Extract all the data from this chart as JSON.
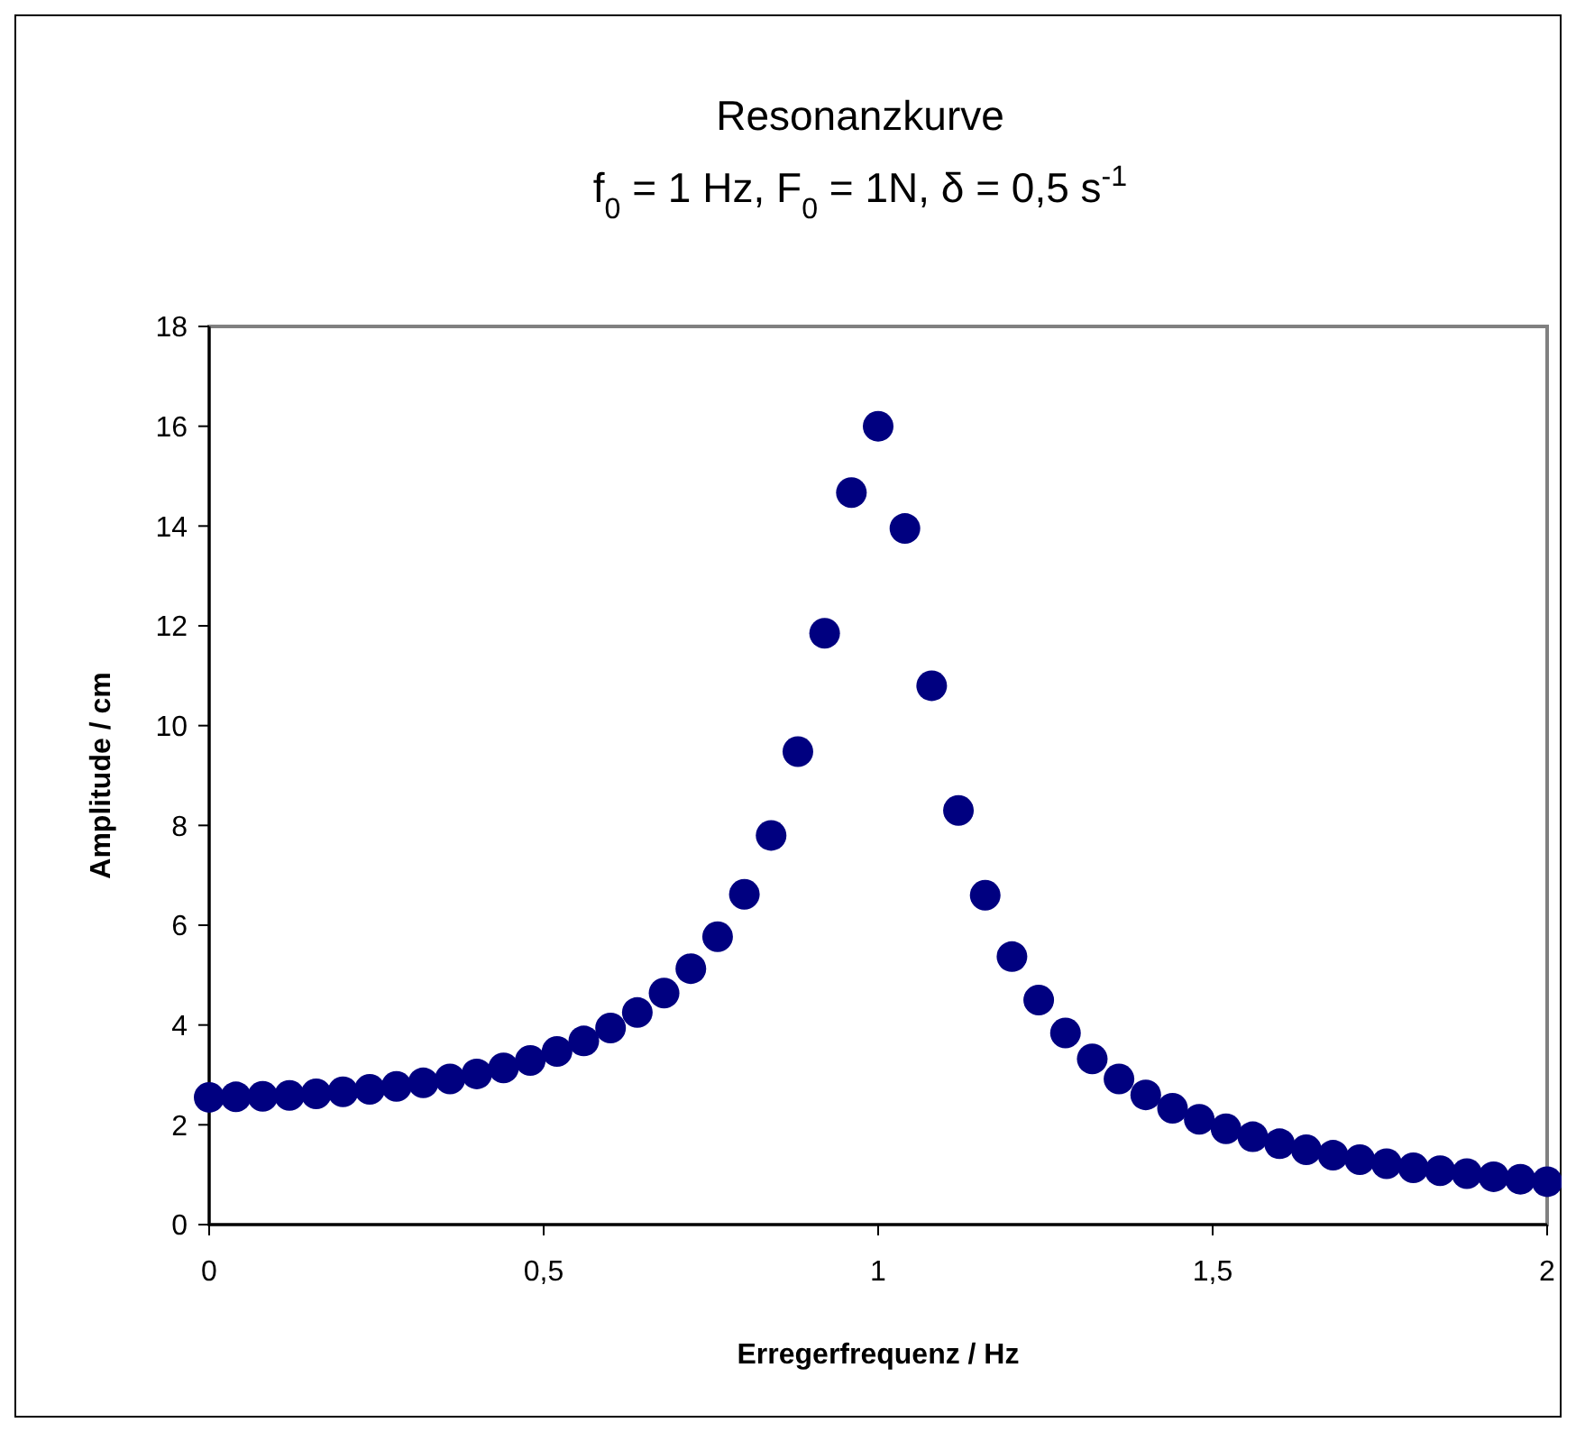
{
  "chart_data": {
    "type": "scatter",
    "title": "Resonanzkurve",
    "subtitle": "f$_{0}$ = 1 Hz, F$_{0}$ = 1N, δ = 0,5 s$^{-1}$",
    "xlabel": "Erregerfrequenz / Hz",
    "ylabel": "Amplitude / cm",
    "x": [
      0,
      0.04,
      0.08,
      0.12,
      0.16,
      0.2,
      0.24,
      0.28,
      0.32,
      0.36,
      0.4,
      0.44,
      0.48,
      0.52,
      0.56,
      0.6,
      0.64,
      0.68,
      0.72,
      0.76,
      0.8,
      0.84,
      0.88,
      0.92,
      0.96,
      1,
      1.04,
      1.08,
      1.12,
      1.16,
      1.2,
      1.24,
      1.28,
      1.32,
      1.36,
      1.4,
      1.44,
      1.48,
      1.52,
      1.56,
      1.6,
      1.64,
      1.68,
      1.72,
      1.76,
      1.8,
      1.84,
      1.88,
      1.92,
      1.96,
      2
    ],
    "series": [
      {
        "color": "#000080",
        "values": [
          2.55,
          2.56,
          2.57,
          2.59,
          2.62,
          2.66,
          2.71,
          2.77,
          2.84,
          2.92,
          3.02,
          3.14,
          3.29,
          3.47,
          3.68,
          3.94,
          4.25,
          4.64,
          5.13,
          5.77,
          6.62,
          7.8,
          9.48,
          11.85,
          14.67,
          16,
          13.95,
          10.8,
          8.3,
          6.6,
          5.37,
          4.5,
          3.84,
          3.32,
          2.92,
          2.6,
          2.33,
          2.11,
          1.92,
          1.76,
          1.62,
          1.5,
          1.39,
          1.3,
          1.22,
          1.14,
          1.08,
          1.02,
          0.96,
          0.91,
          0.86
        ]
      }
    ],
    "xlim": [
      0,
      2
    ],
    "xticks": [
      0,
      {
        "value": 0.5,
        "label": "0,5"
      },
      1,
      {
        "value": 1.5,
        "label": "1,5"
      },
      2
    ],
    "ylim": [
      0,
      18
    ],
    "yticks": [
      0,
      2,
      4,
      6,
      8,
      10,
      12,
      14,
      16,
      18
    ],
    "grid": false,
    "marker": "circle"
  }
}
